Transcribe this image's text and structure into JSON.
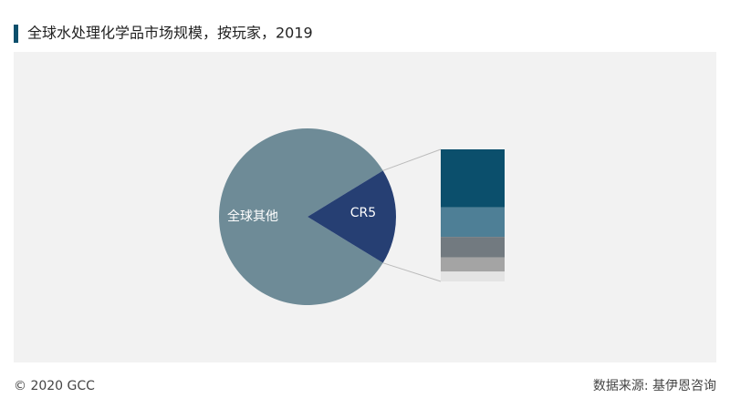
{
  "chart_data": {
    "type": "pie",
    "title": "全球水处理化学品市场规模，按玩家，2019",
    "categories": [
      "全球其他",
      "CR5"
    ],
    "values": [
      82.5,
      17.5
    ],
    "colors": [
      "#6e8b97",
      "#263f73"
    ],
    "breakdown": {
      "values": [
        7.7,
        3.9,
        2.7,
        1.9,
        1.3
      ],
      "colors": [
        "#0b4f6c",
        "#4e7f96",
        "#727a80",
        "#a4a4a4",
        "#e4e4e4"
      ]
    }
  },
  "footer": {
    "copyright": "© 2020 GCC",
    "source": "数据来源: 基伊恩咨询"
  }
}
